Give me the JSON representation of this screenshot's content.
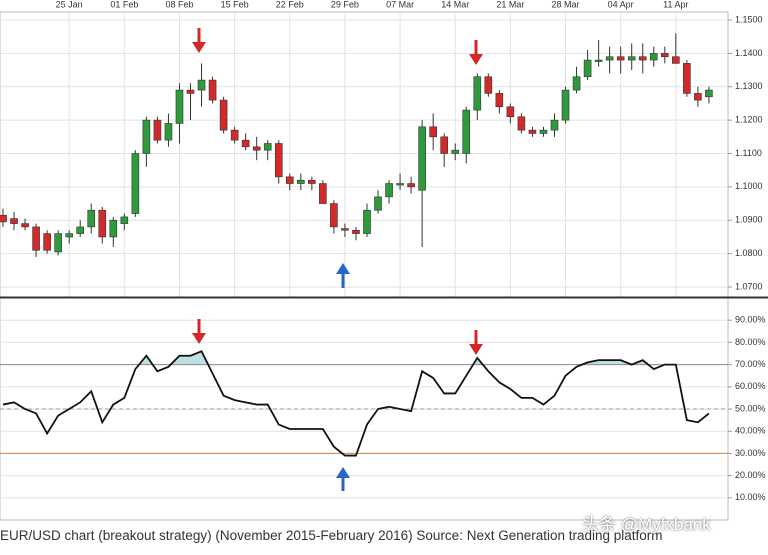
{
  "chart_data": [
    {
      "type": "candlestick",
      "categories": [
        null,
        null,
        null,
        null,
        null,
        null,
        "25 Jan",
        null,
        null,
        null,
        null,
        "01 Feb",
        null,
        null,
        null,
        null,
        "08 Feb",
        null,
        null,
        null,
        null,
        "15 Feb",
        null,
        null,
        null,
        null,
        "22 Feb",
        null,
        null,
        null,
        null,
        "29 Feb",
        null,
        null,
        null,
        null,
        "07 Mar",
        null,
        null,
        null,
        null,
        "14 Mar",
        null,
        null,
        null,
        null,
        "21 Mar",
        null,
        null,
        null,
        null,
        "28 Mar",
        null,
        null,
        null,
        null,
        "04 Apr",
        null,
        null,
        null,
        null,
        "11 Apr",
        null,
        null,
        null
      ],
      "open": [
        1.0915,
        1.0905,
        1.089,
        1.088,
        1.086,
        1.0805,
        1.085,
        1.086,
        1.088,
        1.093,
        1.085,
        1.089,
        1.092,
        1.11,
        1.12,
        1.114,
        1.119,
        1.129,
        1.129,
        1.132,
        1.126,
        1.117,
        1.114,
        1.112,
        1.111,
        1.113,
        1.103,
        1.101,
        1.102,
        1.101,
        1.095,
        1.0875,
        1.087,
        1.086,
        1.093,
        1.097,
        1.101,
        1.101,
        1.099,
        1.118,
        1.115,
        1.11,
        1.11,
        1.123,
        1.133,
        1.128,
        1.124,
        1.121,
        1.117,
        1.116,
        1.117,
        1.12,
        1.129,
        1.133,
        1.138,
        1.138,
        1.139,
        1.138,
        1.139,
        1.138,
        1.14,
        1.139,
        1.137,
        1.128,
        1.127
      ],
      "high": [
        1.0935,
        1.0925,
        1.0905,
        1.089,
        1.087,
        1.087,
        1.087,
        1.09,
        1.095,
        1.094,
        1.091,
        1.092,
        1.111,
        1.121,
        1.121,
        1.122,
        1.131,
        1.131,
        1.137,
        1.133,
        1.127,
        1.118,
        1.116,
        1.115,
        1.114,
        1.114,
        1.104,
        1.104,
        1.103,
        1.102,
        1.096,
        1.089,
        1.088,
        1.095,
        1.099,
        1.102,
        1.104,
        1.103,
        1.12,
        1.122,
        1.116,
        1.113,
        1.124,
        1.134,
        1.134,
        1.129,
        1.125,
        1.122,
        1.118,
        1.118,
        1.122,
        1.13,
        1.136,
        1.141,
        1.144,
        1.142,
        1.142,
        1.143,
        1.143,
        1.142,
        1.142,
        1.146,
        1.138,
        1.13,
        1.13
      ],
      "low": [
        1.088,
        1.087,
        1.087,
        1.079,
        1.08,
        1.0795,
        1.083,
        1.085,
        1.086,
        1.083,
        1.082,
        1.087,
        1.091,
        1.106,
        1.113,
        1.112,
        1.113,
        1.12,
        1.124,
        1.125,
        1.116,
        1.113,
        1.111,
        1.108,
        1.108,
        1.101,
        1.099,
        1.099,
        1.099,
        1.095,
        1.086,
        1.085,
        1.084,
        1.085,
        1.092,
        1.095,
        1.099,
        1.098,
        1.082,
        1.111,
        1.106,
        1.108,
        1.107,
        1.12,
        1.127,
        1.122,
        1.119,
        1.116,
        1.115,
        1.115,
        1.115,
        1.119,
        1.128,
        1.132,
        1.136,
        1.134,
        1.134,
        1.135,
        1.134,
        1.136,
        1.137,
        1.137,
        1.127,
        1.124,
        1.125
      ],
      "close": [
        1.0895,
        1.089,
        1.088,
        1.081,
        1.081,
        1.086,
        1.086,
        1.088,
        1.093,
        1.085,
        1.09,
        1.091,
        1.11,
        1.12,
        1.114,
        1.119,
        1.129,
        1.128,
        1.132,
        1.126,
        1.117,
        1.114,
        1.112,
        1.111,
        1.113,
        1.103,
        1.101,
        1.102,
        1.101,
        1.095,
        1.088,
        1.087,
        1.086,
        1.093,
        1.097,
        1.101,
        1.101,
        1.1,
        1.118,
        1.115,
        1.11,
        1.111,
        1.123,
        1.133,
        1.128,
        1.124,
        1.121,
        1.117,
        1.116,
        1.117,
        1.12,
        1.129,
        1.133,
        1.138,
        1.138,
        1.139,
        1.138,
        1.139,
        1.138,
        1.14,
        1.139,
        1.137,
        1.128,
        1.126,
        1.129
      ],
      "up_color": "#2f9a3c",
      "down_color": "#d22a2a",
      "ylim": [
        1.067,
        1.1524
      ],
      "yticks": [
        {
          "value": 1.07,
          "label": "1.0700"
        },
        {
          "value": 1.08,
          "label": "1.0800"
        },
        {
          "value": 1.09,
          "label": "1.0900"
        },
        {
          "value": 1.1,
          "label": "1.1000"
        },
        {
          "value": 1.11,
          "label": "1.1100"
        },
        {
          "value": 1.12,
          "label": "1.1200"
        },
        {
          "value": 1.13,
          "label": "1.1300"
        },
        {
          "value": 1.14,
          "label": "1.1400"
        },
        {
          "value": 1.15,
          "label": "1.1500"
        }
      ],
      "grid": true
    },
    {
      "type": "line",
      "categories": [
        null,
        null,
        null,
        null,
        null,
        null,
        null,
        null,
        null,
        null,
        null,
        null,
        null,
        null,
        null,
        null,
        null,
        null,
        null,
        null,
        null,
        null,
        null,
        null,
        null,
        null,
        null,
        null,
        null,
        null,
        null,
        null,
        null,
        null,
        null,
        null,
        null,
        null,
        null,
        null,
        null,
        null,
        null,
        null,
        null,
        null,
        null,
        null,
        null,
        null,
        null,
        null,
        null,
        null,
        null,
        null,
        null,
        null,
        null,
        null,
        null,
        null,
        null,
        null,
        null
      ],
      "values": [
        52,
        53,
        50,
        48,
        39,
        47,
        50,
        53,
        58,
        44,
        52,
        55,
        68,
        74,
        67,
        69,
        74,
        74,
        76,
        66,
        56,
        54,
        53,
        52,
        52,
        43,
        41,
        41,
        41,
        41,
        33,
        29,
        29,
        43,
        50,
        51,
        50,
        49,
        67,
        64,
        57,
        57,
        65,
        73,
        67,
        62,
        59,
        55,
        55,
        52,
        56,
        65,
        69,
        71,
        72,
        72,
        72,
        70,
        72,
        68,
        70,
        70,
        45,
        44,
        48
      ],
      "color": "#111111",
      "fill_color": "#bfe0e3",
      "ylim": [
        0,
        100
      ],
      "yticks": [
        {
          "value": 10,
          "label": "10.00%"
        },
        {
          "value": 20,
          "label": "20.00%"
        },
        {
          "value": 30,
          "label": "30.00%"
        },
        {
          "value": 40,
          "label": "40.00%"
        },
        {
          "value": 50,
          "label": "50.00%"
        },
        {
          "value": 60,
          "label": "60.00%"
        },
        {
          "value": 70,
          "label": "70.00%"
        },
        {
          "value": 80,
          "label": "80.00%"
        },
        {
          "value": 90,
          "label": "90.00%"
        }
      ],
      "reference_lines": [
        {
          "value": 70,
          "color": "#8a8a8a",
          "dash": false
        },
        {
          "value": 50,
          "color": "#9a9a9a",
          "dash": true
        },
        {
          "value": 30,
          "color": "#c8864a",
          "dash": false
        }
      ],
      "grid": true
    }
  ],
  "caption": "EUR/USD chart (breakout strategy) (November 2015-February 2016) Source: Next Generation trading platform",
  "watermark": "头条 @Myfxbank"
}
